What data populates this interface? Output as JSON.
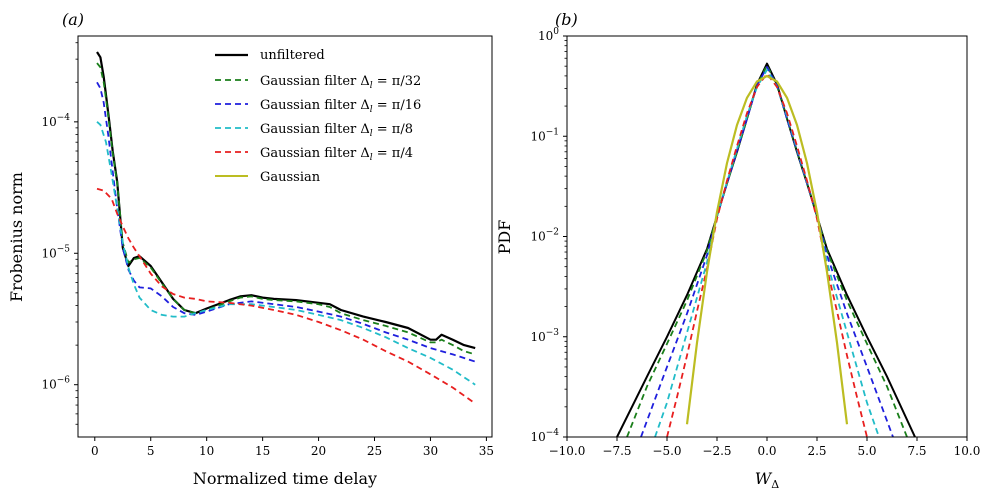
{
  "chart_data": [
    {
      "type": "line",
      "panel_label": "(a)",
      "xlabel": "Normalized time delay",
      "ylabel": "Frobenius norm",
      "yscale": "log",
      "xlim": [
        -1.5,
        35.5
      ],
      "ylim": [
        4e-07,
        0.00045
      ],
      "xticks": [
        0,
        5,
        10,
        15,
        20,
        25,
        30,
        35
      ],
      "xtick_labels": [
        "0",
        "5",
        "10",
        "15",
        "20",
        "25",
        "30",
        "35"
      ],
      "yticks": [
        1e-06,
        1e-05,
        0.0001
      ],
      "ytick_labels": [
        "10^-6",
        "10^-5",
        "10^-4"
      ],
      "legend_position": "top-right",
      "series": [
        {
          "name": "unfiltered",
          "color": "#000000",
          "dash": "solid",
          "width": 2.2,
          "x": [
            0.2,
            0.5,
            0.8,
            1.0,
            1.3,
            1.6,
            2.0,
            2.5,
            3.0,
            3.5,
            4.0,
            5.0,
            6.0,
            7.0,
            8.0,
            9.0,
            10.0,
            12.0,
            13.0,
            14.0,
            15.0,
            16.0,
            18.0,
            20.0,
            21.0,
            22.0,
            24.0,
            26.0,
            28.0,
            30.0,
            30.5,
            31.0,
            32.0,
            33.0,
            34.0
          ],
          "y": [
            0.00034,
            0.00031,
            0.00022,
            0.00016,
            0.0001,
            6e-05,
            3.5e-05,
            1.1e-05,
            8e-06,
            9.2e-06,
            9.5e-06,
            8e-06,
            6e-06,
            4.5e-06,
            3.7e-06,
            3.5e-06,
            3.8e-06,
            4.4e-06,
            4.7e-06,
            4.8e-06,
            4.6e-06,
            4.5e-06,
            4.4e-06,
            4.2e-06,
            4.1e-06,
            3.7e-06,
            3.3e-06,
            3e-06,
            2.7e-06,
            2.2e-06,
            2.2e-06,
            2.4e-06,
            2.2e-06,
            2e-06,
            1.9e-06
          ]
        },
        {
          "name": "Gaussian filter Δl = π/32",
          "label_main": "Gaussian filter Δ",
          "label_sub": "l",
          "label_tail": " = π/32",
          "color": "#1a7f1a",
          "dash": "6,4",
          "width": 1.8,
          "x": [
            0.2,
            0.5,
            0.8,
            1.0,
            1.3,
            1.6,
            2.0,
            2.5,
            3.0,
            3.5,
            4.0,
            5.0,
            6.0,
            7.0,
            8.0,
            9.0,
            10.0,
            12.0,
            13.0,
            14.0,
            15.0,
            16.0,
            18.0,
            20.0,
            21.0,
            22.0,
            24.0,
            26.0,
            28.0,
            30.0,
            30.5,
            31.0,
            32.0,
            33.0,
            34.0
          ],
          "y": [
            0.00028,
            0.00026,
            0.0002,
            0.00015,
            9.5e-05,
            5.8e-05,
            3.4e-05,
            1.2e-05,
            8.5e-06,
            9e-06,
            9.2e-06,
            7.8e-06,
            5.9e-06,
            4.5e-06,
            3.7e-06,
            3.5e-06,
            3.7e-06,
            4.3e-06,
            4.6e-06,
            4.7e-06,
            4.5e-06,
            4.4e-06,
            4.3e-06,
            4.1e-06,
            3.9e-06,
            3.5e-06,
            3.1e-06,
            2.8e-06,
            2.5e-06,
            2.1e-06,
            2.1e-06,
            2.2e-06,
            2e-06,
            1.8e-06,
            1.7e-06
          ]
        },
        {
          "name": "Gaussian filter Δl = π/16",
          "label_main": "Gaussian filter Δ",
          "label_sub": "l",
          "label_tail": " = π/16",
          "color": "#1f1fdd",
          "dash": "6,4",
          "width": 1.8,
          "x": [
            0.2,
            0.5,
            0.8,
            1.2,
            1.6,
            2.0,
            2.5,
            3.0,
            3.5,
            4.0,
            5.0,
            6.0,
            7.0,
            8.0,
            9.0,
            10.0,
            12.0,
            14.0,
            16.0,
            18.0,
            20.0,
            22.0,
            24.0,
            26.0,
            28.0,
            30.0,
            32.0,
            34.0
          ],
          "y": [
            0.0002,
            0.00018,
            0.00014,
            8e-05,
            4.2e-05,
            2.2e-05,
            1.1e-05,
            7.5e-06,
            6.2e-06,
            5.5e-06,
            5.4e-06,
            4.7e-06,
            3.9e-06,
            3.5e-06,
            3.4e-06,
            3.6e-06,
            4.1e-06,
            4.3e-06,
            4.1e-06,
            3.9e-06,
            3.6e-06,
            3.3e-06,
            2.9e-06,
            2.5e-06,
            2.2e-06,
            1.9e-06,
            1.7e-06,
            1.5e-06
          ]
        },
        {
          "name": "Gaussian filter Δl = π/8",
          "label_main": "Gaussian filter Δ",
          "label_sub": "l",
          "label_tail": " = π/8",
          "color": "#21bcc8",
          "dash": "6,4",
          "width": 1.8,
          "x": [
            0.2,
            0.5,
            1.0,
            1.5,
            2.0,
            2.5,
            3.0,
            3.5,
            4.0,
            5.0,
            6.0,
            7.0,
            8.0,
            9.0,
            10.0,
            12.0,
            14.0,
            16.0,
            18.0,
            20.0,
            22.0,
            24.0,
            26.0,
            28.0,
            30.0,
            32.0,
            34.0
          ],
          "y": [
            0.0001,
            9.5e-05,
            7e-05,
            4e-05,
            2.2e-05,
            1.2e-05,
            7.8e-06,
            5.8e-06,
            4.6e-06,
            3.7e-06,
            3.4e-06,
            3.3e-06,
            3.3e-06,
            3.5e-06,
            3.7e-06,
            4.1e-06,
            4.1e-06,
            3.9e-06,
            3.7e-06,
            3.4e-06,
            3.1e-06,
            2.7e-06,
            2.3e-06,
            1.9e-06,
            1.6e-06,
            1.3e-06,
            1e-06
          ]
        },
        {
          "name": "Gaussian filter Δl = π/4",
          "label_main": "Gaussian filter Δ",
          "label_sub": "l",
          "label_tail": " = π/4",
          "color": "#e81f1f",
          "dash": "6,4",
          "width": 1.8,
          "x": [
            0.2,
            0.8,
            1.5,
            2.0,
            2.5,
            3.0,
            3.5,
            4.0,
            5.0,
            6.0,
            7.0,
            8.0,
            9.0,
            10.0,
            12.0,
            14.0,
            16.0,
            18.0,
            20.0,
            22.0,
            24.0,
            26.0,
            28.0,
            30.0,
            32.0,
            34.0
          ],
          "y": [
            3.1e-05,
            3e-05,
            2.6e-05,
            2e-05,
            1.6e-05,
            1.3e-05,
            1.1e-05,
            9.5e-06,
            7e-06,
            5.6e-06,
            4.9e-06,
            4.6e-06,
            4.5e-06,
            4.3e-06,
            4.2e-06,
            4e-06,
            3.7e-06,
            3.4e-06,
            3e-06,
            2.6e-06,
            2.2e-06,
            1.8e-06,
            1.5e-06,
            1.2e-06,
            9.5e-07,
            7.2e-07
          ]
        },
        {
          "name": "Gaussian",
          "color": "#bcbd22",
          "dash": "solid",
          "width": 2.0,
          "x": [],
          "y": []
        }
      ]
    },
    {
      "type": "line",
      "panel_label": "(b)",
      "xlabel": "W_Δ",
      "xlabel_main": "W",
      "xlabel_sub": "Δ",
      "ylabel": "PDF",
      "yscale": "log",
      "xlim": [
        -10.0,
        10.0
      ],
      "ylim": [
        0.0001,
        1.0
      ],
      "xticks": [
        -10,
        -7.5,
        -5,
        -2.5,
        0,
        2.5,
        5,
        7.5,
        10
      ],
      "xtick_labels": [
        "−10.0",
        "−7.5",
        "−5.0",
        "−2.5",
        "0.0",
        "2.5",
        "5.0",
        "7.5",
        "10.0"
      ],
      "yticks": [
        0.0001,
        0.001,
        0.01,
        0.1,
        1
      ],
      "ytick_labels": [
        "10^-4",
        "10^-3",
        "10^-2",
        "10^-1",
        "10^0"
      ],
      "series": [
        {
          "name": "unfiltered",
          "color": "#000000",
          "dash": "solid",
          "width": 2.0,
          "x": [
            -7.5,
            -6.0,
            -5.0,
            -4.0,
            -3.0,
            -2.5,
            -2.0,
            -1.5,
            -1.0,
            -0.5,
            0.0,
            0.5,
            1.0,
            1.5,
            2.0,
            2.5,
            3.0,
            4.0,
            5.0,
            6.0,
            7.4
          ],
          "y": [
            0.0001,
            0.0004,
            0.001,
            0.0026,
            0.0075,
            0.016,
            0.034,
            0.07,
            0.15,
            0.33,
            0.53,
            0.33,
            0.15,
            0.07,
            0.034,
            0.016,
            0.0075,
            0.0026,
            0.001,
            0.0004,
            0.0001
          ]
        },
        {
          "name": "π/32",
          "color": "#1a7f1a",
          "dash": "6,4",
          "width": 1.8,
          "x": [
            -7.0,
            -6.0,
            -5.0,
            -4.0,
            -3.0,
            -2.5,
            -2.0,
            -1.5,
            -1.0,
            -0.5,
            0.0,
            0.5,
            1.0,
            1.5,
            2.0,
            2.5,
            3.0,
            4.0,
            5.0,
            6.0,
            7.0
          ],
          "y": [
            0.0001,
            0.00032,
            0.00085,
            0.0023,
            0.0072,
            0.016,
            0.034,
            0.07,
            0.15,
            0.32,
            0.51,
            0.32,
            0.15,
            0.07,
            0.034,
            0.016,
            0.0072,
            0.0023,
            0.00085,
            0.00032,
            0.0001
          ]
        },
        {
          "name": "π/16",
          "color": "#1f1fdd",
          "dash": "6,4",
          "width": 1.8,
          "x": [
            -6.3,
            -5.0,
            -4.0,
            -3.0,
            -2.5,
            -2.0,
            -1.5,
            -1.0,
            -0.5,
            0.0,
            0.5,
            1.0,
            1.5,
            2.0,
            2.5,
            3.0,
            4.0,
            5.0,
            6.3
          ],
          "y": [
            0.0001,
            0.0005,
            0.0017,
            0.0065,
            0.016,
            0.034,
            0.072,
            0.15,
            0.32,
            0.49,
            0.32,
            0.15,
            0.072,
            0.034,
            0.016,
            0.0065,
            0.0017,
            0.0005,
            0.0001
          ]
        },
        {
          "name": "π/8",
          "color": "#21bcc8",
          "dash": "6,4",
          "width": 1.8,
          "x": [
            -5.6,
            -5.0,
            -4.0,
            -3.0,
            -2.5,
            -2.0,
            -1.5,
            -1.0,
            -0.5,
            0.0,
            0.5,
            1.0,
            1.5,
            2.0,
            2.5,
            3.0,
            4.0,
            5.0,
            5.6
          ],
          "y": [
            0.0001,
            0.00022,
            0.0011,
            0.0055,
            0.016,
            0.035,
            0.075,
            0.16,
            0.31,
            0.46,
            0.31,
            0.16,
            0.075,
            0.035,
            0.016,
            0.0055,
            0.0011,
            0.00022,
            0.0001
          ]
        },
        {
          "name": "π/4",
          "color": "#e81f1f",
          "dash": "6,4",
          "width": 1.8,
          "x": [
            -5.0,
            -4.5,
            -4.0,
            -3.5,
            -3.0,
            -2.5,
            -2.0,
            -1.5,
            -1.0,
            -0.5,
            0.0,
            0.5,
            1.0,
            1.5,
            2.0,
            2.5,
            3.0,
            3.5,
            4.0,
            4.5,
            5.0
          ],
          "y": [
            0.0001,
            0.00025,
            0.00065,
            0.0018,
            0.0048,
            0.015,
            0.036,
            0.08,
            0.17,
            0.31,
            0.42,
            0.31,
            0.17,
            0.08,
            0.036,
            0.015,
            0.0048,
            0.0018,
            0.00065,
            0.00025,
            0.0001
          ]
        },
        {
          "name": "Gaussian",
          "color": "#bcbd22",
          "dash": "solid",
          "width": 2.2,
          "x": [
            -4.0,
            -3.5,
            -3.0,
            -2.5,
            -2.0,
            -1.5,
            -1.0,
            -0.5,
            0.0,
            0.5,
            1.0,
            1.5,
            2.0,
            2.5,
            3.0,
            3.5,
            4.0
          ],
          "y": [
            0.000134,
            0.000873,
            0.00443,
            0.0175,
            0.054,
            0.1295,
            0.242,
            0.352,
            0.399,
            0.352,
            0.242,
            0.1295,
            0.054,
            0.0175,
            0.00443,
            0.000873,
            0.000134
          ]
        }
      ]
    }
  ]
}
